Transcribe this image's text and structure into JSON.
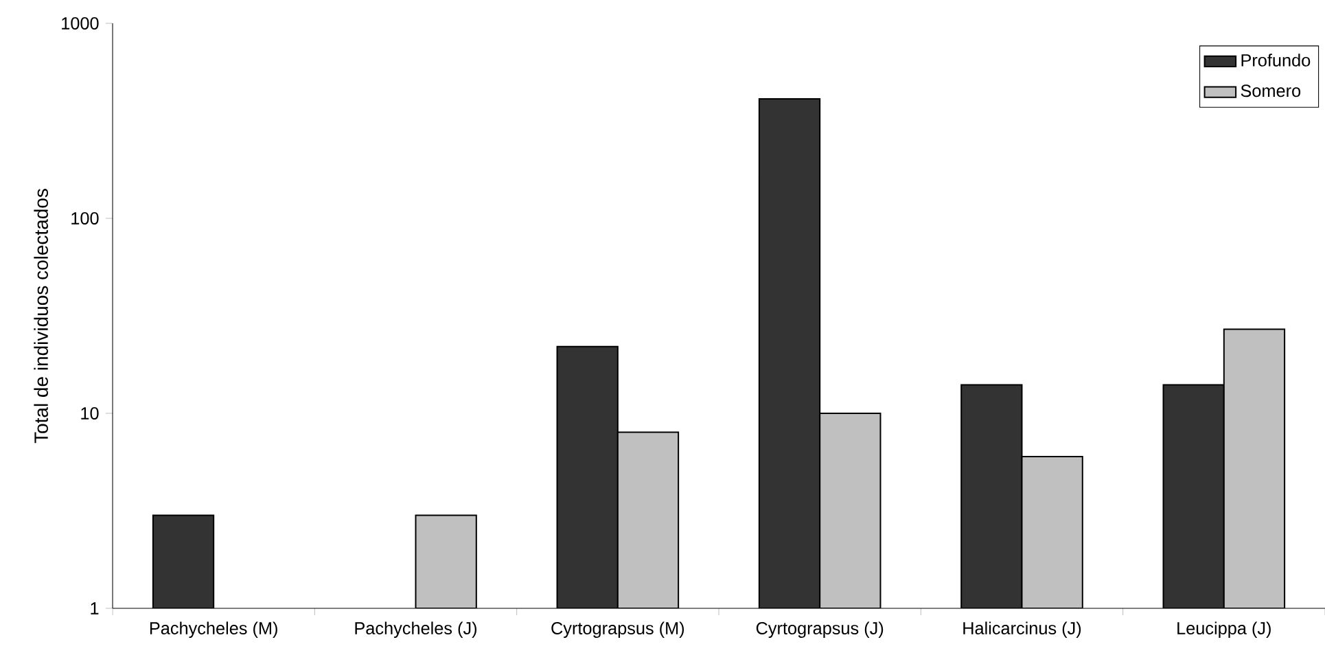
{
  "chart_data": {
    "type": "bar",
    "ylabel": "Total de individuos colectados",
    "categories": [
      "Pachycheles (M)",
      "Pachycheles (J)",
      "Cyrtograpsus (M)",
      "Cyrtograpsus (J)",
      "Halicarcinus (J)",
      "Leucippa (J)"
    ],
    "series": [
      {
        "name": "Profundo",
        "color": "#333333",
        "values": [
          3,
          null,
          22,
          410,
          14,
          14
        ]
      },
      {
        "name": "Somero",
        "color": "#c0c0c0",
        "values": [
          null,
          3,
          8,
          10,
          6,
          27
        ]
      }
    ],
    "log": true,
    "ylim": [
      1,
      1000
    ],
    "yticks": [
      1,
      10,
      100,
      1000
    ],
    "legend": "top right"
  }
}
